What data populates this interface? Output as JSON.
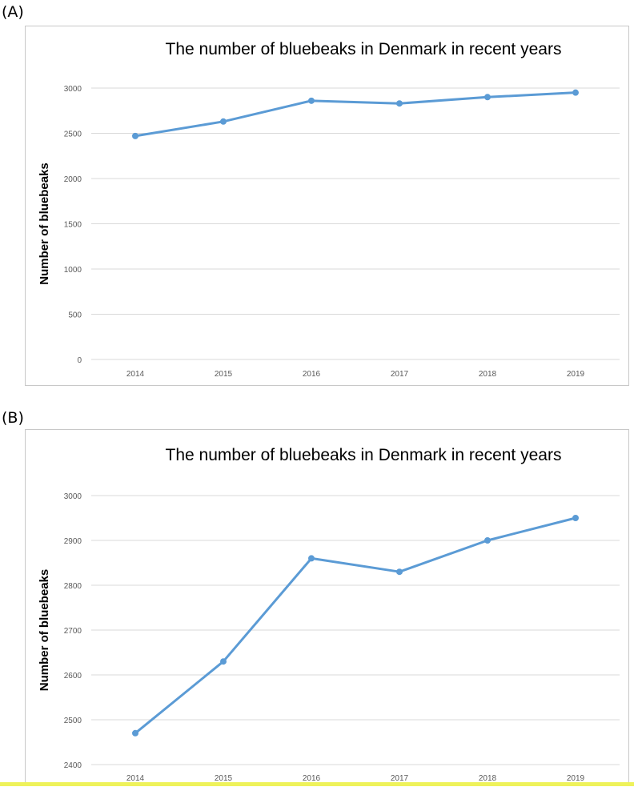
{
  "panels": [
    {
      "label": "(A)"
    },
    {
      "label": "(B)"
    }
  ],
  "chart_data": [
    {
      "type": "line",
      "title": "The number of bluebeaks in Denmark in recent years",
      "xlabel": "",
      "ylabel": "Number of bluebeaks",
      "categories": [
        "2014",
        "2015",
        "2016",
        "2017",
        "2018",
        "2019"
      ],
      "series": [
        {
          "values": [
            2470,
            2630,
            2860,
            2830,
            2900,
            2950
          ]
        }
      ],
      "ylim": [
        0,
        3000
      ],
      "yticks": [
        "0",
        "500",
        "1000",
        "1500",
        "2000",
        "2500",
        "3000"
      ],
      "grid": true,
      "color": "#5b9bd5"
    },
    {
      "type": "line",
      "title": "The number of bluebeaks in Denmark in recent years",
      "xlabel": "",
      "ylabel": "Number of bluebeaks",
      "categories": [
        "2014",
        "2015",
        "2016",
        "2017",
        "2018",
        "2019"
      ],
      "series": [
        {
          "values": [
            2470,
            2630,
            2860,
            2830,
            2900,
            2950
          ]
        }
      ],
      "ylim": [
        2400,
        3000
      ],
      "yticks": [
        "2400",
        "2500",
        "2600",
        "2700",
        "2800",
        "2900",
        "3000"
      ],
      "grid": true,
      "color": "#5b9bd5"
    }
  ]
}
